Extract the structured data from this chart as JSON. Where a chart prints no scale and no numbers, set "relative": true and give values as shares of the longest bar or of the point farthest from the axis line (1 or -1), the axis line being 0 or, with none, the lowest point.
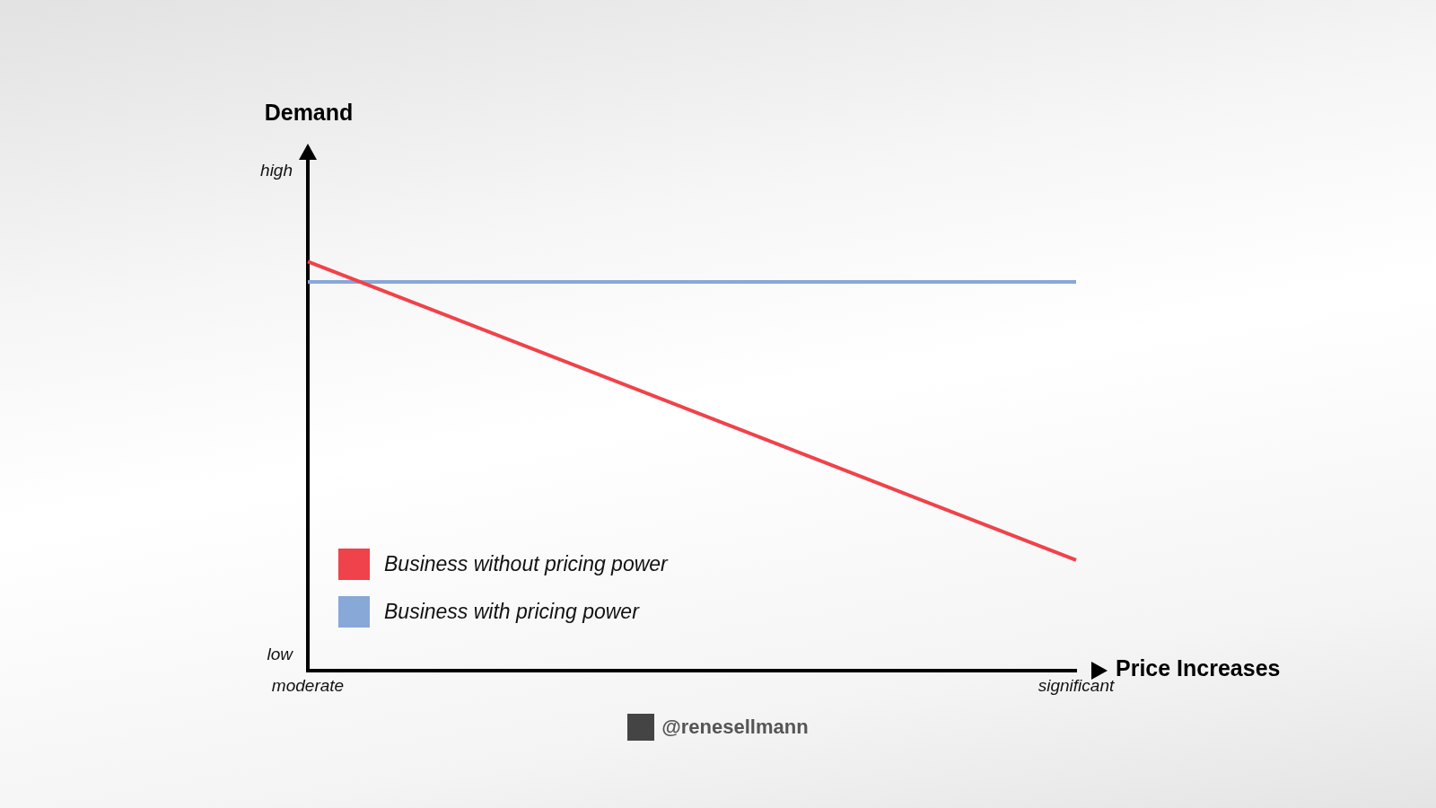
{
  "chart_data": {
    "type": "line",
    "xlabel": "Price Increases",
    "categories": [
      "moderate",
      "significant"
    ],
    "relative": true,
    "series": [
      {
        "name": "Business without pricing power",
        "color": "#f0424a",
        "values": [
          1,
          0.27
        ]
      },
      {
        "name": "Business with pricing power",
        "color": "#88a8d8",
        "values": [
          0.95,
          0.95
        ]
      }
    ],
    "legend": "bottom left",
    "marker": "none",
    "line_style": "solid",
    "annotations": [
      "high",
      "low",
      "@renesellmann",
      "Demand"
    ]
  }
}
